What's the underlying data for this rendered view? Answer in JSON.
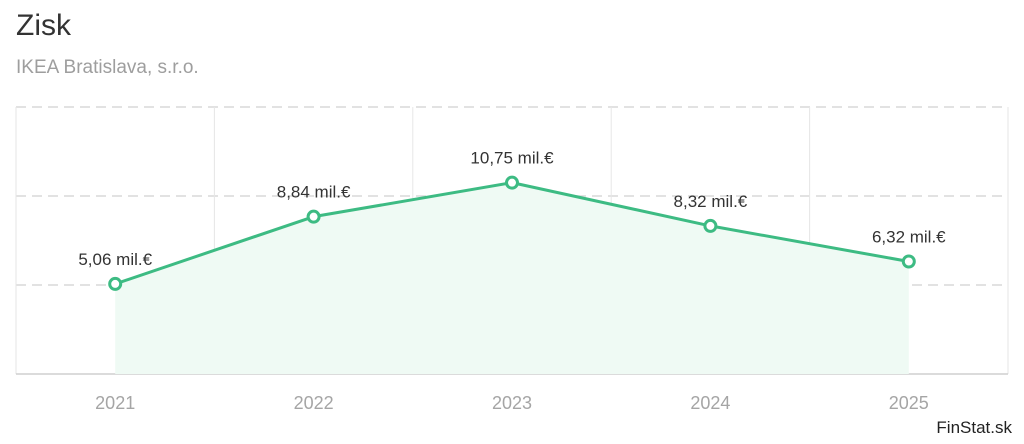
{
  "header": {
    "title": "Zisk",
    "subtitle": "IKEA Bratislava, s.r.o."
  },
  "brand": "FinStat.sk",
  "colors": {
    "line": "#3dbb83",
    "area": "#effaf4",
    "grid": "#d9d9d9",
    "text": "#333333",
    "tick": "#a5a5a5"
  },
  "chart_data": {
    "type": "area",
    "title": "Zisk",
    "subtitle": "IKEA Bratislava, s.r.o.",
    "categories": [
      "2021",
      "2022",
      "2023",
      "2024",
      "2025"
    ],
    "series": [
      {
        "values": [
          5.06,
          8.84,
          10.75,
          8.32,
          6.32
        ],
        "labels": [
          "5,06 mil.€",
          "8,84 mil.€",
          "10,75 mil.€",
          "8,32 mil.€",
          "6,32 mil.€"
        ]
      }
    ],
    "ylim": [
      0,
      15
    ],
    "yticks": [
      5,
      10,
      15
    ],
    "grid": true,
    "legend": "none"
  }
}
